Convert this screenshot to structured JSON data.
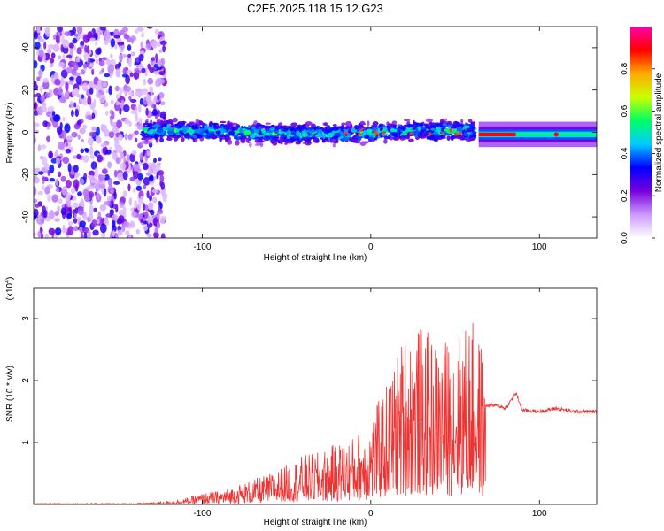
{
  "title": "C2E5.2025.118.15.12.G23",
  "chart_data": [
    {
      "type": "heatmap",
      "title": "C2E5.2025.118.15.12.G23",
      "xlabel": "Height of straight line (km)",
      "ylabel": "Frequency (Hz)",
      "xlim": [
        -200,
        134
      ],
      "ylim": [
        -50,
        50
      ],
      "xticks": [
        -100,
        0,
        100
      ],
      "xtick_labels": [
        "-100",
        "0",
        "100"
      ],
      "yticks": [
        -40,
        -20,
        0,
        20,
        40
      ],
      "ytick_labels": [
        "-40",
        "-20",
        "0",
        "20",
        "40"
      ],
      "colormap": [
        "#ffffff",
        "#cc99ff",
        "#7700dd",
        "#0000ff",
        "#00ccff",
        "#00ff66",
        "#ccff00",
        "#ffaa00",
        "#ff0000",
        "#ff00aa"
      ],
      "colorbar": {
        "label": "Normalized spectral amplitude",
        "range": [
          0,
          1
        ],
        "ticks": [
          0.0,
          0.2,
          0.4,
          0.6,
          0.8
        ],
        "tick_labels": [
          "0.0",
          "0.2",
          "0.4",
          "0.6",
          "0.8"
        ]
      },
      "features": [
        {
          "region": "scattered noise",
          "x_range": [
            -200,
            -122
          ],
          "y_range": [
            -50,
            50
          ],
          "amplitude": 0.05
        },
        {
          "region": "broad signal band",
          "x_range": [
            -135,
            62
          ],
          "y_center": 0,
          "halfwidth_hz": 6,
          "amplitude": 0.3
        },
        {
          "region": "narrow tone",
          "x_range": [
            64,
            134
          ],
          "y_center": -1,
          "halfwidth_hz": 1.5,
          "amplitude": 0.9
        }
      ]
    },
    {
      "type": "line",
      "xlabel": "Height of straight line (km)",
      "ylabel": "SNR (10 * v/v)",
      "y_multiplier": "(x10^4)",
      "xlim": [
        -200,
        134
      ],
      "ylim": [
        0,
        3.5
      ],
      "xticks": [
        -100,
        0,
        100
      ],
      "xtick_labels": [
        "-100",
        "0",
        "100"
      ],
      "yticks": [
        1,
        2,
        3
      ],
      "ytick_labels": [
        "1",
        "2",
        "3"
      ],
      "color": "#ee3333",
      "series": [
        {
          "x": [
            -200,
            -180,
            -160,
            -140,
            -120,
            -110,
            -100,
            -90,
            -80,
            -70,
            -60,
            -50,
            -40,
            -30,
            -20,
            -10,
            0,
            10,
            20,
            30,
            40,
            50,
            60,
            66,
            68,
            75,
            80,
            86,
            90,
            100,
            110,
            120,
            134
          ],
          "y": [
            0.02,
            0.02,
            0.02,
            0.02,
            0.05,
            0.1,
            0.18,
            0.22,
            0.3,
            0.4,
            0.5,
            0.65,
            0.8,
            0.85,
            1.0,
            1.1,
            1.4,
            2.0,
            2.8,
            2.9,
            2.6,
            2.8,
            3.0,
            2.6,
            1.6,
            1.6,
            1.55,
            1.8,
            1.52,
            1.5,
            1.55,
            1.5,
            1.5
          ]
        }
      ]
    }
  ]
}
